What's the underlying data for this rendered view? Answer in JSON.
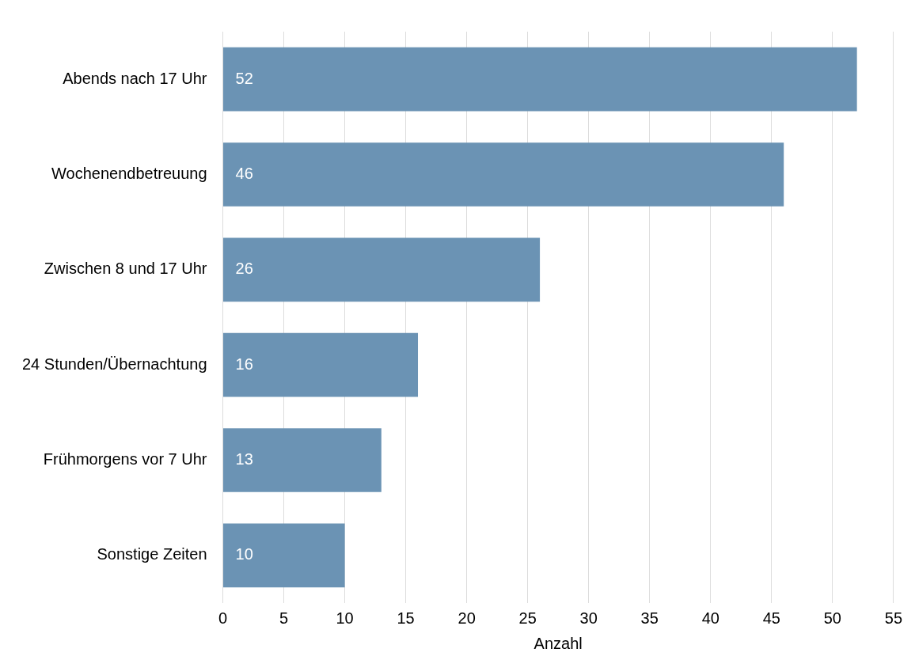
{
  "chart_data": {
    "type": "bar",
    "orientation": "horizontal",
    "xlabel": "Anzahl",
    "categories": [
      "Abends nach 17 Uhr",
      "Wochenendbetreuung",
      "Zwischen 8 und 17 Uhr",
      "24 Stunden/Übernachtung",
      "Frühmorgens vor 7 Uhr",
      "Sonstige Zeiten"
    ],
    "values": [
      52,
      46,
      26,
      16,
      13,
      10
    ],
    "color": "#6b93b4",
    "xlim": [
      0,
      55
    ],
    "xticks": [
      0,
      5,
      10,
      15,
      20,
      25,
      30,
      35,
      40,
      45,
      50,
      55
    ],
    "grid": "x",
    "data_labels": true
  }
}
